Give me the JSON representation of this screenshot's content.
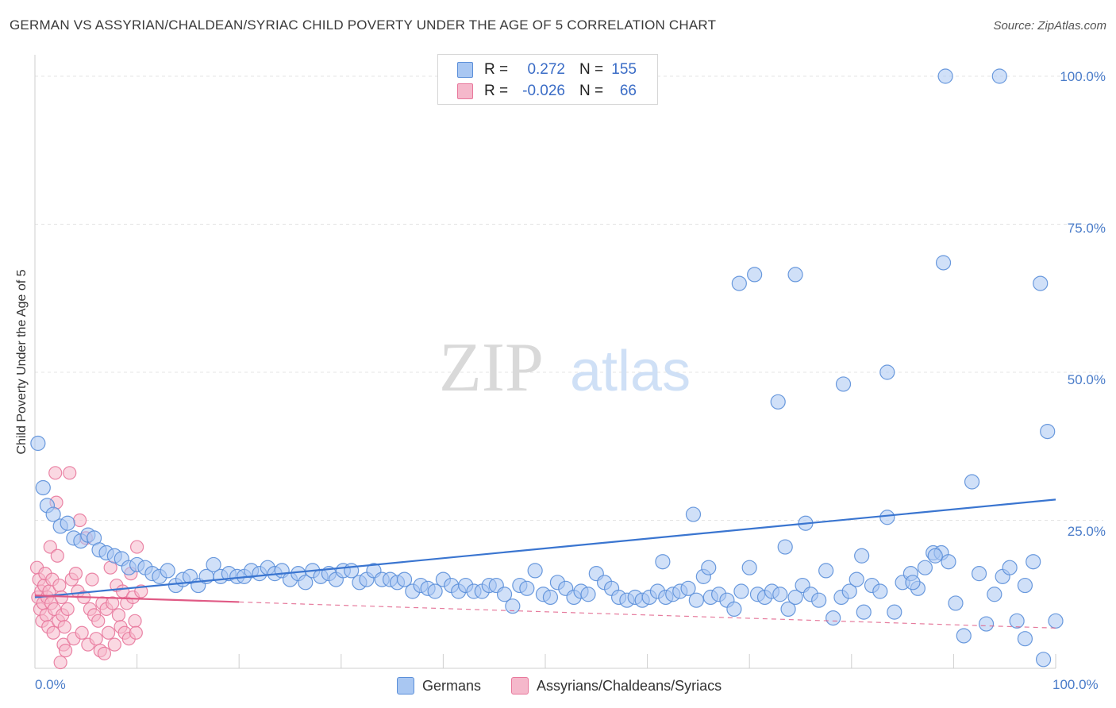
{
  "chart_data": {
    "type": "scatter",
    "title": "GERMAN VS ASSYRIAN/CHALDEAN/SYRIAC CHILD POVERTY UNDER THE AGE OF 5 CORRELATION CHART",
    "source": "Source: ZipAtlas.com",
    "ylabel": "Child Poverty Under the Age of 5",
    "xlim": [
      0,
      100
    ],
    "ylim": [
      0,
      100
    ],
    "y_ticks": [
      {
        "value": 100,
        "label": "100.0%"
      },
      {
        "value": 75,
        "label": "75.0%"
      },
      {
        "value": 50,
        "label": "50.0%"
      },
      {
        "value": 25,
        "label": "25.0%"
      }
    ],
    "x_ticks": [
      {
        "value": 0,
        "label": "0.0%"
      },
      {
        "value": 100,
        "label": "100.0%"
      }
    ],
    "grid": true,
    "watermark": "ZIPatlas",
    "legend": {
      "position": "top-center",
      "rows": [
        {
          "r_label": "R =",
          "r_value": "0.272",
          "n_label": "N =",
          "n_value": "155",
          "color": "#a9c7f2"
        },
        {
          "r_label": "R =",
          "r_value": "-0.026",
          "n_label": "N =",
          "n_value": "66",
          "color": "#f5b8cb"
        }
      ]
    },
    "series": [
      {
        "name": "Germans",
        "color": "#a9c7f2",
        "stroke": "#5b8fd9",
        "trend": {
          "x": [
            0,
            100
          ],
          "y": [
            12.0,
            28.5
          ],
          "color": "#3a75d0"
        },
        "points": [
          [
            0.3,
            38
          ],
          [
            0.8,
            30.5
          ],
          [
            1.2,
            27.5
          ],
          [
            1.8,
            26
          ],
          [
            2.5,
            24
          ],
          [
            3.2,
            24.5
          ],
          [
            3.8,
            22
          ],
          [
            4.5,
            21.5
          ],
          [
            5.2,
            22.5
          ],
          [
            5.8,
            22
          ],
          [
            6.3,
            20
          ],
          [
            7,
            19.5
          ],
          [
            7.8,
            19
          ],
          [
            8.5,
            18.5
          ],
          [
            9.2,
            17
          ],
          [
            10,
            17.5
          ],
          [
            10.8,
            17
          ],
          [
            11.5,
            16
          ],
          [
            12.2,
            15.5
          ],
          [
            13,
            16.5
          ],
          [
            13.8,
            14
          ],
          [
            14.5,
            15
          ],
          [
            15.2,
            15.5
          ],
          [
            16,
            14
          ],
          [
            16.8,
            15.5
          ],
          [
            17.5,
            17.5
          ],
          [
            18.2,
            15.5
          ],
          [
            19,
            16
          ],
          [
            19.8,
            15.5
          ],
          [
            20.5,
            15.5
          ],
          [
            21.2,
            16.5
          ],
          [
            22,
            16
          ],
          [
            22.8,
            17
          ],
          [
            23.5,
            16
          ],
          [
            24.2,
            16.5
          ],
          [
            25,
            15
          ],
          [
            25.8,
            16
          ],
          [
            26.5,
            14.5
          ],
          [
            27.2,
            16.5
          ],
          [
            28,
            15.5
          ],
          [
            28.8,
            16
          ],
          [
            29.5,
            15
          ],
          [
            30.2,
            16.5
          ],
          [
            31,
            16.5
          ],
          [
            31.8,
            14.5
          ],
          [
            32.5,
            15
          ],
          [
            33.2,
            16.5
          ],
          [
            34,
            15
          ],
          [
            34.8,
            15
          ],
          [
            35.5,
            14.5
          ],
          [
            36.2,
            15
          ],
          [
            37,
            13
          ],
          [
            37.8,
            14
          ],
          [
            38.5,
            13.5
          ],
          [
            39.2,
            13
          ],
          [
            40,
            15
          ],
          [
            40.8,
            14
          ],
          [
            41.5,
            13
          ],
          [
            42.2,
            14
          ],
          [
            43,
            13
          ],
          [
            43.8,
            13
          ],
          [
            44.5,
            14
          ],
          [
            45.2,
            14
          ],
          [
            46,
            12.5
          ],
          [
            46.8,
            10.5
          ],
          [
            47.5,
            14
          ],
          [
            48.2,
            13.5
          ],
          [
            49,
            16.5
          ],
          [
            49.8,
            12.5
          ],
          [
            50.5,
            12
          ],
          [
            51.2,
            14.5
          ],
          [
            52,
            13.5
          ],
          [
            52.8,
            12
          ],
          [
            53.5,
            13
          ],
          [
            54.2,
            12.5
          ],
          [
            55,
            16
          ],
          [
            55.8,
            14.5
          ],
          [
            56.5,
            13.5
          ],
          [
            57.2,
            12
          ],
          [
            58,
            11.5
          ],
          [
            58.8,
            12
          ],
          [
            59.5,
            11.5
          ],
          [
            60.2,
            12
          ],
          [
            61,
            13
          ],
          [
            61.8,
            12
          ],
          [
            62.5,
            12.5
          ],
          [
            63.2,
            13
          ],
          [
            64,
            13.5
          ],
          [
            64.8,
            11.5
          ],
          [
            65.5,
            15.5
          ],
          [
            66.2,
            12
          ],
          [
            67,
            12.5
          ],
          [
            67.8,
            11.5
          ],
          [
            68.5,
            10
          ],
          [
            69.2,
            13
          ],
          [
            70,
            17
          ],
          [
            70.8,
            12.5
          ],
          [
            71.5,
            12
          ],
          [
            72.2,
            13
          ],
          [
            73,
            12.5
          ],
          [
            73.8,
            10
          ],
          [
            74.5,
            12
          ],
          [
            75.2,
            14
          ],
          [
            76,
            12.5
          ],
          [
            76.8,
            11.5
          ],
          [
            77.5,
            16.5
          ],
          [
            78.2,
            8.5
          ],
          [
            79,
            12
          ],
          [
            79.8,
            13
          ],
          [
            80.5,
            15
          ],
          [
            81.2,
            9.5
          ],
          [
            82,
            14
          ],
          [
            82.8,
            13
          ],
          [
            83.5,
            25.5
          ],
          [
            84.2,
            9.5
          ],
          [
            85,
            14.5
          ],
          [
            85.8,
            16
          ],
          [
            86.5,
            13.5
          ],
          [
            87.2,
            17
          ],
          [
            88,
            19.5
          ],
          [
            88.8,
            19.5
          ],
          [
            89.5,
            18
          ],
          [
            90.2,
            11
          ],
          [
            91,
            5.5
          ],
          [
            91.8,
            31.5
          ],
          [
            92.5,
            16
          ],
          [
            93.2,
            7.5
          ],
          [
            94,
            12.5
          ],
          [
            94.8,
            15.5
          ],
          [
            95.5,
            17
          ],
          [
            96.2,
            8
          ],
          [
            97,
            5
          ],
          [
            97.8,
            18
          ],
          [
            98.5,
            65
          ],
          [
            99.2,
            40
          ],
          [
            70.5,
            66.5
          ],
          [
            72.8,
            45
          ],
          [
            74.5,
            66.5
          ],
          [
            79.2,
            48
          ],
          [
            83.5,
            50
          ],
          [
            88.2,
            19
          ],
          [
            89,
            68.5
          ],
          [
            89.2,
            100
          ],
          [
            94.5,
            100
          ],
          [
            97,
            14
          ],
          [
            98.8,
            1.5
          ],
          [
            100,
            8
          ],
          [
            61.5,
            18
          ],
          [
            66,
            17
          ],
          [
            73.5,
            20.5
          ],
          [
            75.5,
            24.5
          ],
          [
            81,
            19
          ],
          [
            86,
            14.5
          ],
          [
            64.5,
            26
          ],
          [
            69,
            65
          ]
        ]
      },
      {
        "name": "Assyrians/Chaldeans/Syriacs",
        "color": "#f5b8cb",
        "stroke": "#e8789c",
        "trend": {
          "x": [
            0,
            100
          ],
          "y": [
            12.3,
            6.8
          ],
          "solid_until": 20,
          "color": "#e05a85"
        },
        "points": [
          [
            0.2,
            17
          ],
          [
            0.3,
            12
          ],
          [
            0.4,
            15
          ],
          [
            0.5,
            10
          ],
          [
            0.6,
            13
          ],
          [
            0.7,
            8
          ],
          [
            0.8,
            11
          ],
          [
            0.9,
            14
          ],
          [
            1,
            16
          ],
          [
            1.1,
            9
          ],
          [
            1.2,
            12
          ],
          [
            1.3,
            7
          ],
          [
            1.4,
            13
          ],
          [
            1.5,
            20.5
          ],
          [
            1.6,
            11
          ],
          [
            1.7,
            15
          ],
          [
            1.8,
            6
          ],
          [
            1.9,
            10
          ],
          [
            2,
            33
          ],
          [
            2.1,
            28
          ],
          [
            2.2,
            19
          ],
          [
            2.3,
            8
          ],
          [
            2.4,
            14
          ],
          [
            2.5,
            1
          ],
          [
            2.6,
            12
          ],
          [
            2.7,
            9
          ],
          [
            2.8,
            4
          ],
          [
            2.9,
            7
          ],
          [
            3,
            3
          ],
          [
            3.2,
            10
          ],
          [
            3.4,
            33
          ],
          [
            3.6,
            15
          ],
          [
            3.8,
            5
          ],
          [
            4,
            16
          ],
          [
            4.2,
            13
          ],
          [
            4.4,
            25
          ],
          [
            4.6,
            6
          ],
          [
            4.8,
            12
          ],
          [
            5,
            22
          ],
          [
            5.2,
            4
          ],
          [
            5.4,
            10
          ],
          [
            5.6,
            15
          ],
          [
            5.8,
            9
          ],
          [
            6,
            5
          ],
          [
            6.2,
            8
          ],
          [
            6.4,
            3
          ],
          [
            6.6,
            11
          ],
          [
            6.8,
            2.5
          ],
          [
            7,
            10
          ],
          [
            7.2,
            6
          ],
          [
            7.4,
            17
          ],
          [
            7.6,
            11
          ],
          [
            7.8,
            4
          ],
          [
            8,
            14
          ],
          [
            8.2,
            9
          ],
          [
            8.4,
            7
          ],
          [
            8.6,
            13
          ],
          [
            8.8,
            6
          ],
          [
            9,
            11
          ],
          [
            9.2,
            5
          ],
          [
            9.4,
            16
          ],
          [
            9.6,
            12
          ],
          [
            9.8,
            8
          ],
          [
            10,
            20.5
          ],
          [
            10.4,
            13
          ],
          [
            9.9,
            6
          ]
        ]
      }
    ]
  },
  "bottom_legend": [
    {
      "label": "Germans",
      "color": "#a9c7f2"
    },
    {
      "label": "Assyrians/Chaldeans/Syriacs",
      "color": "#f5b8cb"
    }
  ]
}
